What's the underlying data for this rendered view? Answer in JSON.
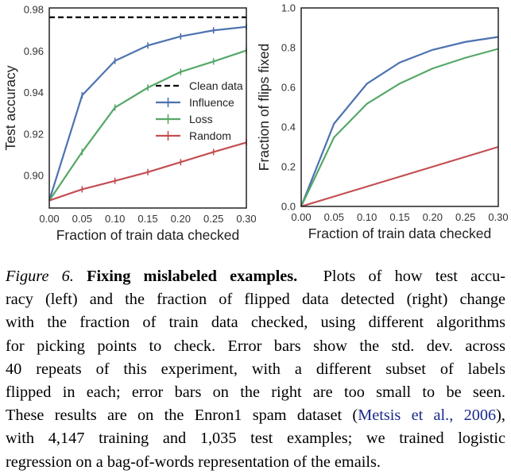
{
  "chart_data": [
    {
      "type": "line",
      "xlabel": "Fraction of train data checked",
      "ylabel": "Test accuracy",
      "x": [
        0.0,
        0.05,
        0.1,
        0.15,
        0.2,
        0.25,
        0.3
      ],
      "xlim": [
        0.0,
        0.3
      ],
      "ylim": [
        0.8844,
        0.9808
      ],
      "xticks": [
        "0.00",
        "0.05",
        "0.10",
        "0.15",
        "0.20",
        "0.25",
        "0.30"
      ],
      "yticks": [
        "0.90",
        "0.92",
        "0.94",
        "0.96",
        "0.98"
      ],
      "ytick_values": [
        0.9,
        0.92,
        0.94,
        0.96,
        0.98
      ],
      "grid": false,
      "legend_position": "center-right",
      "reference_line": {
        "name": "Clean data",
        "y": 0.9763,
        "style": "dashed",
        "color": "#000000"
      },
      "series": [
        {
          "name": "Influence",
          "color": "#4c72b0",
          "error_bars": true,
          "values": [
            0.888,
            0.9387,
            0.9553,
            0.9627,
            0.9671,
            0.97,
            0.9717
          ]
        },
        {
          "name": "Loss",
          "color": "#55a868",
          "error_bars": true,
          "values": [
            0.888,
            0.9114,
            0.9328,
            0.9424,
            0.95,
            0.955,
            0.9603
          ]
        },
        {
          "name": "Random",
          "color": "#c44e52",
          "error_bars": true,
          "values": [
            0.888,
            0.8934,
            0.8975,
            0.9017,
            0.9065,
            0.9114,
            0.916
          ]
        }
      ]
    },
    {
      "type": "line",
      "xlabel": "Fraction of train data checked",
      "ylabel": "Fraction of flips fixed",
      "x": [
        0.0,
        0.05,
        0.1,
        0.15,
        0.2,
        0.25,
        0.3
      ],
      "xlim": [
        0.0,
        0.3
      ],
      "ylim": [
        0.0,
        1.0
      ],
      "xticks": [
        "0.00",
        "0.05",
        "0.10",
        "0.15",
        "0.20",
        "0.25",
        "0.30"
      ],
      "yticks": [
        "0.0",
        "0.2",
        "0.4",
        "0.6",
        "0.8",
        "1.0"
      ],
      "ytick_values": [
        0.0,
        0.2,
        0.4,
        0.6,
        0.8,
        1.0
      ],
      "grid": false,
      "series": [
        {
          "color": "#4c72b0",
          "values": [
            0.0,
            0.417,
            0.618,
            0.725,
            0.789,
            0.829,
            0.854
          ]
        },
        {
          "color": "#55a868",
          "values": [
            0.0,
            0.348,
            0.517,
            0.619,
            0.695,
            0.749,
            0.794
          ]
        },
        {
          "color": "#c44e52",
          "values": [
            0.0,
            0.05,
            0.1,
            0.15,
            0.2,
            0.25,
            0.3
          ]
        }
      ]
    }
  ],
  "caption": {
    "figure_label": "Figure 6.",
    "title": "Fixing mislabeled examples.",
    "lines": [
      "Plots of how test accu-",
      "racy (left) and the fraction of flipped data detected (right) change",
      "with the fraction of train data checked, using different algorithms",
      "for picking points to check. Error bars show the std. dev. across",
      "40 repeats of this experiment, with a different subset of labels",
      "flipped in each; error bars on the right are too small to be seen.",
      "These results are on the Enron1 spam dataset (",
      "Metsis et al., 2006",
      "),",
      "with 4,147 training and 1,035 test examples; we trained logistic",
      "regression on a bag-of-words representation of the emails."
    ]
  }
}
